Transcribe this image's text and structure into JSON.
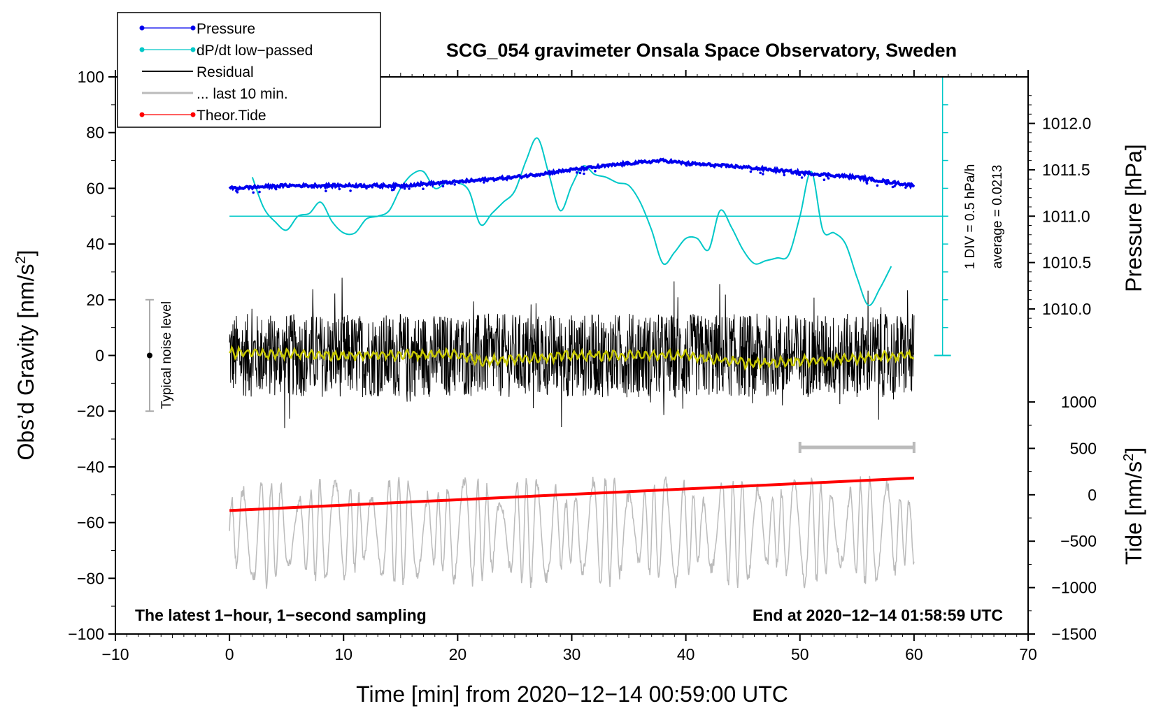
{
  "chart_data": {
    "type": "line",
    "title": "SCG_054 gravimeter Onsala Space Observatory, Sweden",
    "xlabel": "Time [min] from 2020−12−14 00:59:00 UTC",
    "ylabel_left": "Obs’d Gravity [nm/s",
    "ylabel_sup": "2",
    "ylabel_close": "]",
    "ylabel_pressure": "Pressure [hPa]",
    "ylabel_tide": "Tide [nm/s",
    "xlim": [
      -10,
      70
    ],
    "ylim": [
      -100,
      100
    ],
    "pressure_lim": [
      1010.0,
      1012.0
    ],
    "tide_lim": [
      -1500,
      1000
    ],
    "x_ticks": [
      "−10",
      "0",
      "10",
      "20",
      "30",
      "40",
      "50",
      "60",
      "70"
    ],
    "y_ticks": [
      "100",
      "80",
      "60",
      "40",
      "20",
      "0",
      "−20",
      "−40",
      "−60",
      "−80",
      "−100"
    ],
    "pressure_ticks": [
      "1012.0",
      "1011.5",
      "1011.0",
      "1010.5",
      "1010.0"
    ],
    "tide_ticks": [
      "1000",
      "500",
      "0",
      "−500",
      "−1000",
      "−1500"
    ],
    "legend": [
      {
        "label": "Pressure",
        "color": "#0000ee",
        "marker": true
      },
      {
        "label": "dP/dt low−passed",
        "color": "#00c8c8",
        "marker": true
      },
      {
        "label": "Residual",
        "color": "#000000",
        "marker": false
      },
      {
        "label": "... last 10 min.",
        "color": "#bbbbbb",
        "marker": false
      },
      {
        "label": "Theor.Tide",
        "color": "#ff0000",
        "marker": true
      }
    ],
    "series": [
      {
        "name": "Pressure",
        "axis": "pressure",
        "color": "#0000ee",
        "x": [
          0,
          5,
          10,
          15,
          20,
          25,
          30,
          35,
          38,
          40,
          45,
          50,
          55,
          60
        ],
        "values": [
          1011.3,
          1011.33,
          1011.33,
          1011.33,
          1011.37,
          1011.42,
          1011.5,
          1011.57,
          1011.6,
          1011.57,
          1011.53,
          1011.47,
          1011.42,
          1011.33
        ]
      },
      {
        "name": "dP/dt low-passed",
        "axis": "gravity",
        "color": "#00c8c8",
        "x": [
          2,
          3,
          4,
          5,
          6,
          7,
          8,
          9,
          10,
          11,
          12,
          13,
          14,
          15,
          16,
          17,
          18,
          19,
          20,
          21,
          22,
          23,
          24,
          25,
          26,
          27,
          28,
          29,
          30,
          31,
          32,
          33,
          34,
          35,
          36,
          37,
          38,
          39,
          40,
          41,
          42,
          43,
          44,
          45,
          46,
          47,
          48,
          49,
          50,
          51,
          52,
          53,
          54,
          55,
          56,
          57,
          58
        ],
        "values": [
          64,
          53,
          48,
          45,
          50,
          51,
          55,
          48,
          44,
          44,
          49,
          50,
          52,
          60,
          65,
          66,
          60,
          62,
          62,
          59,
          47,
          51,
          55,
          59,
          70,
          78,
          65,
          52,
          61,
          68,
          65,
          64,
          62,
          61,
          55,
          45,
          33,
          37,
          42,
          42,
          38,
          52,
          46,
          38,
          33,
          34,
          35,
          36,
          50,
          66,
          45,
          44,
          40,
          28,
          18,
          24,
          32
        ]
      },
      {
        "name": "Residual",
        "axis": "gravity",
        "color": "#000000",
        "x": [
          0,
          60
        ],
        "values": [
          0,
          0
        ],
        "noise_amplitude": 15
      },
      {
        "name": "Residual smoothed",
        "axis": "gravity",
        "color": "#c8c800",
        "x": [
          0,
          10,
          20,
          22,
          30,
          40,
          46,
          50,
          55,
          60
        ],
        "values": [
          1,
          0,
          0.5,
          -2,
          0,
          0,
          -3,
          -2,
          -1,
          0
        ]
      },
      {
        "name": "... last 10 min.",
        "axis": "gravity",
        "color": "#bbbbbb",
        "x": [
          0,
          60
        ],
        "values": [
          -63,
          -63
        ],
        "oscillation_amplitude": 14
      },
      {
        "name": "Theor.Tide",
        "axis": "tide",
        "color": "#ff0000",
        "x": [
          0,
          60
        ],
        "values": [
          -170,
          180
        ]
      }
    ],
    "pressure_scale_note": "1 DIV = 0.5 hPa/h",
    "average_note": "average = 0.0213",
    "noise_label": "Typical noise level",
    "noise_range": [
      -20,
      20
    ],
    "window_bar_x": [
      50,
      60
    ],
    "bottom_left_note": "The latest 1−hour, 1−second sampling",
    "bottom_right_note": "End at 2020−12−14 01:58:59 UTC"
  }
}
